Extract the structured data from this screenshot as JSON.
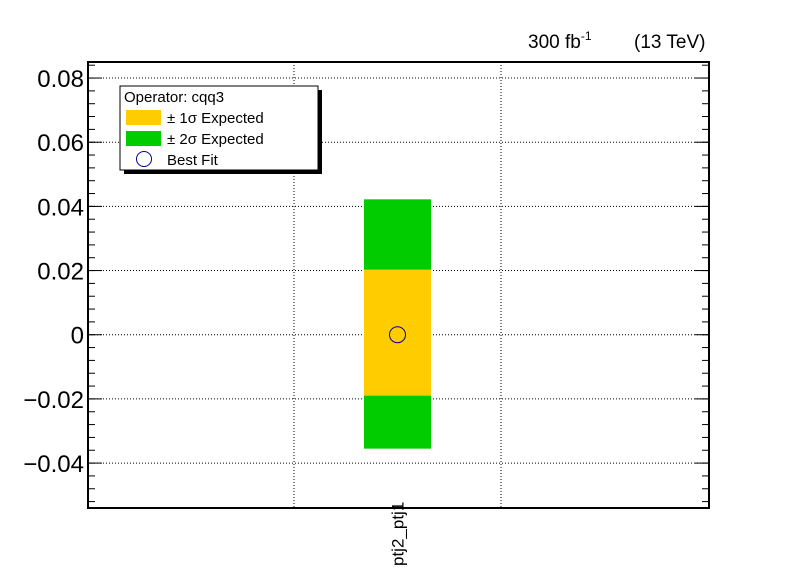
{
  "header": {
    "luminosity": "300 fb",
    "luminosity_exp": "-1",
    "energy": "(13 TeV)"
  },
  "colors": {
    "one_sigma": "#ffcc00",
    "two_sigma": "#00cc00",
    "best_fit_marker": "#000099",
    "grid": "#000000"
  },
  "chart_data": {
    "type": "bar",
    "categories": [
      "ptj2_ptj1"
    ],
    "ylabel": "",
    "ylim": [
      -0.054,
      0.085
    ],
    "yticks": [
      -0.04,
      -0.02,
      0,
      0.02,
      0.04,
      0.06,
      0.08
    ],
    "ytick_labels": [
      "−0.04",
      "−0.02",
      "0",
      "0.02",
      "0.04",
      "0.06",
      "0.08"
    ],
    "grid": true,
    "legend_position": "top-left",
    "legend": {
      "title": "Operator: cqq3",
      "one_sigma_label": "± 1σ Expected",
      "two_sigma_label": "± 2σ Expected",
      "best_fit_label": "Best Fit"
    },
    "series": [
      {
        "category": "ptj2_ptj1",
        "best_fit": 0.0,
        "one_sigma": [
          -0.019,
          0.0203
        ],
        "two_sigma": [
          -0.0355,
          0.0422
        ]
      }
    ]
  }
}
